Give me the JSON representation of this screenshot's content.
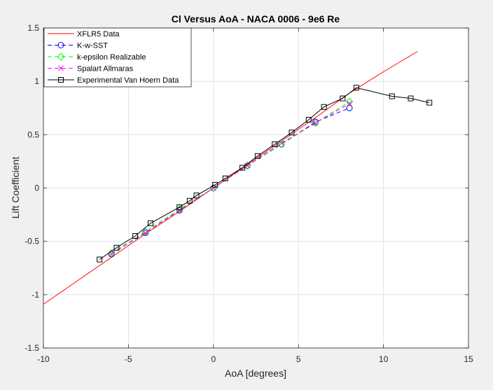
{
  "chart_data": {
    "type": "line",
    "title": "Cl Versus AoA - NACA 0006 - 9e6 Re",
    "xlabel": "AoA [degrees]",
    "ylabel": "Lift Coefficient",
    "xlim": [
      -10,
      15
    ],
    "ylim": [
      -1.5,
      1.5
    ],
    "xticks": [
      -10,
      -5,
      0,
      5,
      10,
      15
    ],
    "xtick_labels": [
      "-10",
      "-5",
      "0",
      "5",
      "10",
      "15"
    ],
    "yticks": [
      -1.5,
      -1,
      -0.5,
      0,
      0.5,
      1,
      1.5
    ],
    "ytick_labels": [
      "-1.5",
      "-1",
      "-0.5",
      "0",
      "0.5",
      "1",
      "1.5"
    ],
    "grid": true,
    "legend_position": "top-left",
    "series": [
      {
        "name": "XFLR5 Data",
        "color": "#ff0000",
        "dash": "solid",
        "marker": "none",
        "x": [
          -10,
          -8,
          -6,
          -4,
          -2,
          0,
          2,
          4,
          6,
          8,
          10,
          12
        ],
        "y": [
          -1.09,
          -0.87,
          -0.65,
          -0.43,
          -0.22,
          0.0,
          0.22,
          0.44,
          0.66,
          0.89,
          1.09,
          1.28
        ]
      },
      {
        "name": "K-w-SST",
        "color": "#0000ff",
        "dash": "dashed",
        "marker": "circle",
        "x": [
          -6,
          -4,
          -2,
          0,
          2,
          4,
          6,
          8
        ],
        "y": [
          -0.62,
          -0.42,
          -0.21,
          0.0,
          0.21,
          0.41,
          0.62,
          0.75
        ]
      },
      {
        "name": "k-epsilon Realizable",
        "color": "#00ff00",
        "dash": "dashed",
        "marker": "diamond",
        "x": [
          -6,
          -4,
          -2,
          0,
          2,
          4,
          6,
          8
        ],
        "y": [
          -0.61,
          -0.41,
          -0.2,
          0.0,
          0.21,
          0.41,
          0.61,
          0.81
        ]
      },
      {
        "name": "Spalart Allmaras",
        "color": "#ff00ff",
        "dash": "dashed",
        "marker": "x",
        "x": [
          -6,
          -4,
          -2,
          0,
          2,
          4,
          6,
          8
        ],
        "y": [
          -0.62,
          -0.42,
          -0.21,
          0.0,
          0.21,
          0.42,
          0.61,
          0.79
        ]
      },
      {
        "name": "Experimental Van Hoern Data",
        "color": "#000000",
        "dash": "solid",
        "marker": "square",
        "x": [
          -6.7,
          -5.7,
          -4.6,
          -3.7,
          -2.0,
          -1.4,
          -1.0,
          0.1,
          0.7,
          1.7,
          2.6,
          3.6,
          4.6,
          5.6,
          6.5,
          7.6,
          8.4,
          10.5,
          11.6,
          12.7
        ],
        "y": [
          -0.67,
          -0.56,
          -0.45,
          -0.33,
          -0.18,
          -0.12,
          -0.07,
          0.03,
          0.09,
          0.19,
          0.3,
          0.41,
          0.52,
          0.64,
          0.76,
          0.84,
          0.94,
          0.86,
          0.84,
          0.8
        ]
      }
    ]
  }
}
